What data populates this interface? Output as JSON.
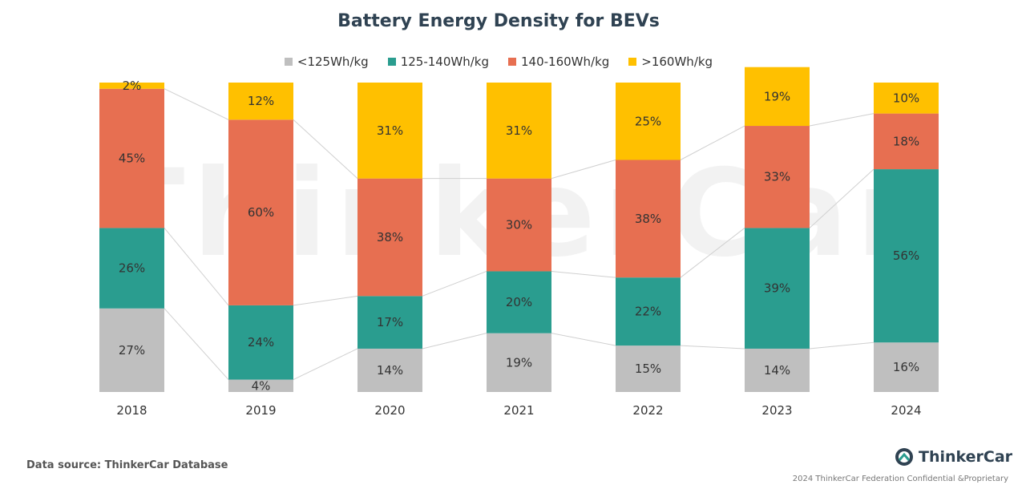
{
  "chart_data": {
    "type": "bar",
    "stacked": true,
    "title": "Battery Energy Density for BEVs",
    "categories": [
      "2018",
      "2019",
      "2020",
      "2021",
      "2022",
      "2023",
      "2024"
    ],
    "series": [
      {
        "name": "<125Wh/kg",
        "color": "#bfbfbf",
        "values": [
          27,
          4,
          14,
          19,
          15,
          14,
          16
        ]
      },
      {
        "name": "125-140Wh/kg",
        "color": "#2a9d8f",
        "values": [
          26,
          24,
          17,
          20,
          22,
          39,
          56
        ]
      },
      {
        "name": "140-160Wh/kg",
        "color": "#e76f51",
        "values": [
          45,
          60,
          38,
          30,
          38,
          33,
          18
        ]
      },
      {
        "name": ">160Wh/kg",
        "color": "#ffc000",
        "values": [
          2,
          12,
          31,
          31,
          25,
          19,
          10
        ]
      }
    ],
    "ylim": [
      0,
      100
    ],
    "legend_position": "top-center",
    "grid": false,
    "watermark": "ThinkerCar"
  },
  "footer": {
    "source": "Data source: ThinkerCar Database",
    "brand": "ThinkerCar",
    "copyright": "2024 ThinkerCar Federation Confidential &Proprietary"
  }
}
